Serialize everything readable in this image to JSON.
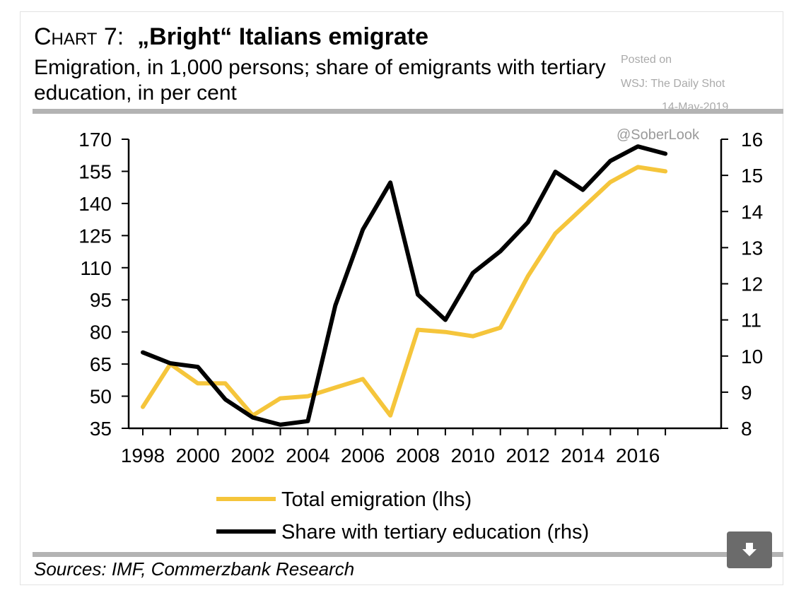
{
  "header": {
    "chart_label": "Chart 7:",
    "title_bold": "„Bright“ Italians emigrate",
    "subtitle": "Emigration, in 1,000 persons; share of emigrants with tertiary education, in per cent"
  },
  "watermark": {
    "posted_on": "Posted on",
    "source": "WSJ: The Daily Shot",
    "date": "14-May-2019",
    "handle": "@SoberLook"
  },
  "footer": {
    "sources": "Sources: IMF, Commerzbank Research"
  },
  "download_button": {
    "icon": "download-icon"
  },
  "colors": {
    "emigration": "#f5c53b",
    "tertiary": "#000000",
    "rule": "#b3b3b3"
  },
  "chart_data": {
    "type": "line",
    "title": "„Bright“ Italians emigrate",
    "x": [
      1998,
      1999,
      2000,
      2001,
      2002,
      2003,
      2004,
      2005,
      2006,
      2007,
      2008,
      2009,
      2010,
      2011,
      2012,
      2013,
      2014,
      2015,
      2016,
      2017
    ],
    "x_ticks": [
      1998,
      2000,
      2002,
      2004,
      2006,
      2008,
      2010,
      2012,
      2014,
      2016
    ],
    "x_tick_labels": [
      "1998",
      "2000",
      "2002",
      "2004",
      "2006",
      "2008",
      "2010",
      "2012",
      "2014",
      "2016"
    ],
    "y_left": {
      "min": 35,
      "max": 170,
      "ticks": [
        35,
        50,
        65,
        80,
        95,
        110,
        125,
        140,
        155,
        170
      ]
    },
    "y_right": {
      "min": 8,
      "max": 16,
      "ticks": [
        8,
        9,
        10,
        11,
        12,
        13,
        14,
        15,
        16
      ]
    },
    "series": [
      {
        "name": "Total emigration (lhs)",
        "axis": "left",
        "color": "#f5c53b",
        "values": [
          45,
          65,
          56,
          56,
          41,
          49,
          50,
          54,
          58,
          41,
          81,
          80,
          78,
          82,
          106,
          126,
          138,
          150,
          157,
          155
        ]
      },
      {
        "name": "Share with tertiary education (rhs)",
        "axis": "right",
        "color": "#000000",
        "values": [
          10.1,
          9.8,
          9.7,
          8.8,
          8.3,
          8.1,
          8.2,
          11.4,
          13.5,
          14.8,
          11.7,
          11.0,
          12.3,
          12.9,
          13.7,
          15.1,
          14.6,
          15.4,
          15.8,
          15.6
        ]
      }
    ],
    "legend": [
      "Total emigration (lhs)",
      "Share with tertiary education (rhs)"
    ],
    "legend_position": "bottom",
    "grid": false
  }
}
